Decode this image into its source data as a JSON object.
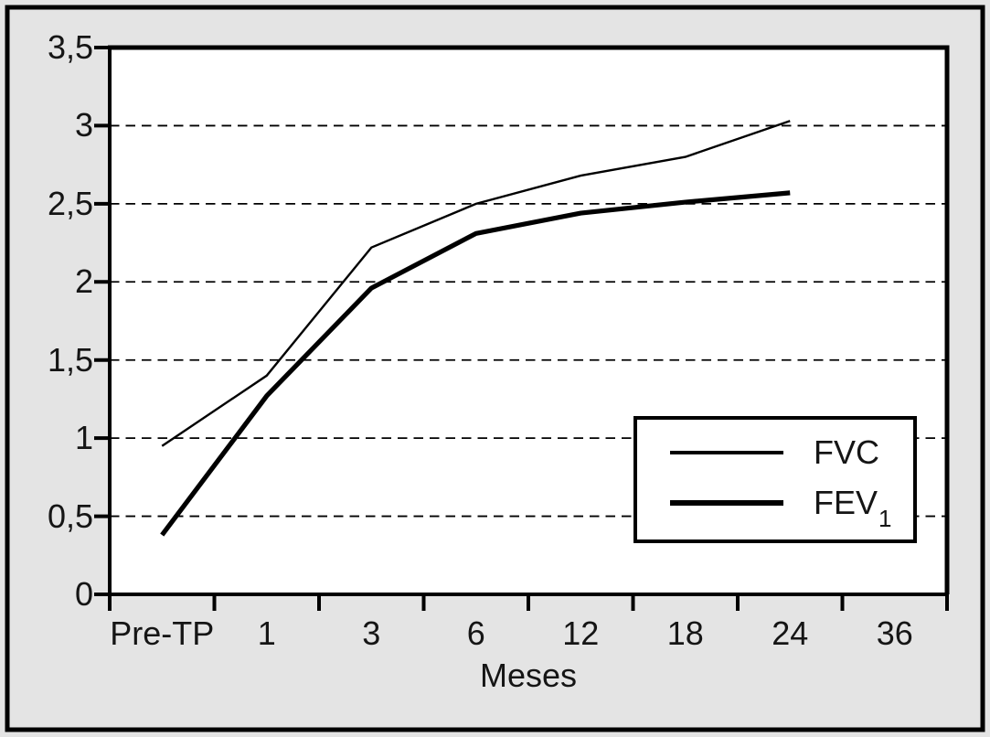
{
  "figure": {
    "background": "#e4e4e4",
    "frame_color": "#000000",
    "plot_background": "#ffffff",
    "line_color": "#000000",
    "text_color": "#151515"
  },
  "chart_data": {
    "type": "line",
    "categories": [
      "Pre-TP",
      "1",
      "3",
      "6",
      "12",
      "18",
      "24",
      "36"
    ],
    "series": [
      {
        "name": "FVC",
        "sub": "",
        "style": "thin",
        "values": [
          0.95,
          1.4,
          2.22,
          2.5,
          2.68,
          2.8,
          3.03
        ]
      },
      {
        "name": "FEV",
        "sub": "1",
        "style": "thick",
        "values": [
          0.38,
          1.27,
          1.96,
          2.31,
          2.44,
          2.51,
          2.57
        ]
      }
    ],
    "title": "",
    "xlabel": "Meses",
    "ylabel": "",
    "ylim": [
      0,
      3.5
    ],
    "ytick_values": [
      0,
      0.5,
      1,
      1.5,
      2,
      2.5,
      3,
      3.5
    ],
    "ytick_labels": [
      "0",
      "0,5",
      "1",
      "1,5",
      "2",
      "2,5",
      "3",
      "3,5"
    ],
    "grid": "horizontal-dashed",
    "legend_position": "lower-right",
    "notes": "series data ends at category 24; no data at 36"
  }
}
